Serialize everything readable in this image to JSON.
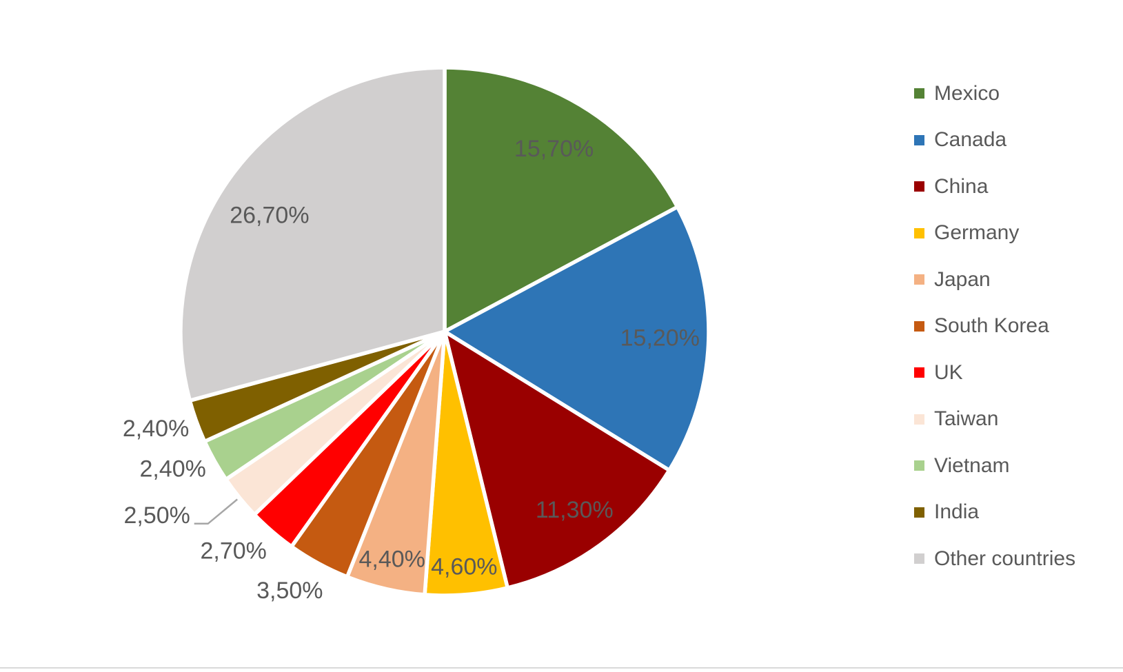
{
  "page": {
    "background": "#FFFFFF",
    "bottom_divider_color": "#D9D9D9"
  },
  "chart_data": {
    "type": "pie",
    "title": "",
    "direction": "clockwise",
    "start_angle_deg": 0,
    "legend_position": "right",
    "label_color": "#595959",
    "legend_text_color": "#595959",
    "leader_line_color": "#A6A6A6",
    "slice_gap_color": "#FFFFFF",
    "slices": [
      {
        "name": "Mexico",
        "value": 15.7,
        "label": "15,70%",
        "color": "#548235"
      },
      {
        "name": "Canada",
        "value": 15.2,
        "label": "15,20%",
        "color": "#2E75B6"
      },
      {
        "name": "China",
        "value": 11.3,
        "label": "11,30%",
        "color": "#9A0000"
      },
      {
        "name": "Germany",
        "value": 4.6,
        "label": "4,60%",
        "color": "#FFC000"
      },
      {
        "name": "Japan",
        "value": 4.4,
        "label": "4,40%",
        "color": "#F4B183"
      },
      {
        "name": "South Korea",
        "value": 3.5,
        "label": "3,50%",
        "color": "#C55A11"
      },
      {
        "name": "UK",
        "value": 2.7,
        "label": "2,70%",
        "color": "#FF0000"
      },
      {
        "name": "Taiwan",
        "value": 2.5,
        "label": "2,50%",
        "color": "#FBE5D6"
      },
      {
        "name": "Vietnam",
        "value": 2.4,
        "label": "2,40%",
        "color": "#A9D18E"
      },
      {
        "name": "India",
        "value": 2.4,
        "label": "2,40%",
        "color": "#7F6000"
      },
      {
        "name": "Other countries",
        "value": 26.7,
        "label": "26,70%",
        "color": "#D1CFCF"
      }
    ],
    "legend_entries": [
      "Mexico",
      "Canada",
      "China",
      "Germany",
      "Japan",
      "South Korea",
      "UK",
      "Taiwan",
      "Vietnam",
      "India",
      "Other countries"
    ]
  }
}
